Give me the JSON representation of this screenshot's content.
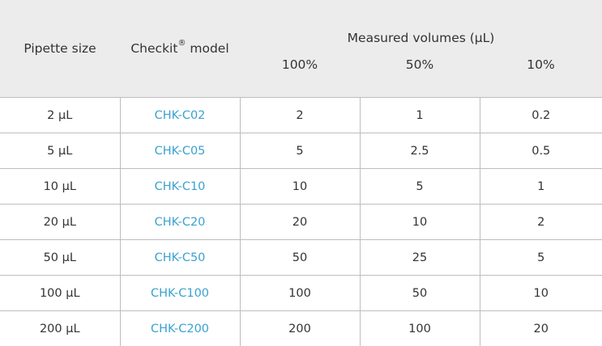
{
  "header": {
    "pipette_size": "Pipette size",
    "model_prefix": "Checkit",
    "model_sup": "®",
    "model_suffix": " model",
    "measured": "Measured volumes (µL)",
    "pct_100": "100%",
    "pct_50": "50%",
    "pct_10": "10%"
  },
  "rows": [
    {
      "size": "2 µL",
      "model": "CHK-C02",
      "v100": "2",
      "v50": "1",
      "v10": "0.2"
    },
    {
      "size": "5 µL",
      "model": "CHK-C05",
      "v100": "5",
      "v50": "2.5",
      "v10": "0.5"
    },
    {
      "size": "10 µL",
      "model": "CHK-C10",
      "v100": "10",
      "v50": "5",
      "v10": "1"
    },
    {
      "size": "20 µL",
      "model": "CHK-C20",
      "v100": "20",
      "v50": "10",
      "v10": "2"
    },
    {
      "size": "50 µL",
      "model": "CHK-C50",
      "v100": "50",
      "v50": "25",
      "v10": "5"
    },
    {
      "size": "100 µL",
      "model": "CHK-C100",
      "v100": "100",
      "v50": "50",
      "v10": "10"
    },
    {
      "size": "200 µL",
      "model": "CHK-C200",
      "v100": "200",
      "v50": "100",
      "v10": "20"
    }
  ],
  "colors": {
    "header_bg": "#ececec",
    "model_link": "#3aa2cf",
    "border": "#bdbdbd",
    "text": "#333333"
  }
}
